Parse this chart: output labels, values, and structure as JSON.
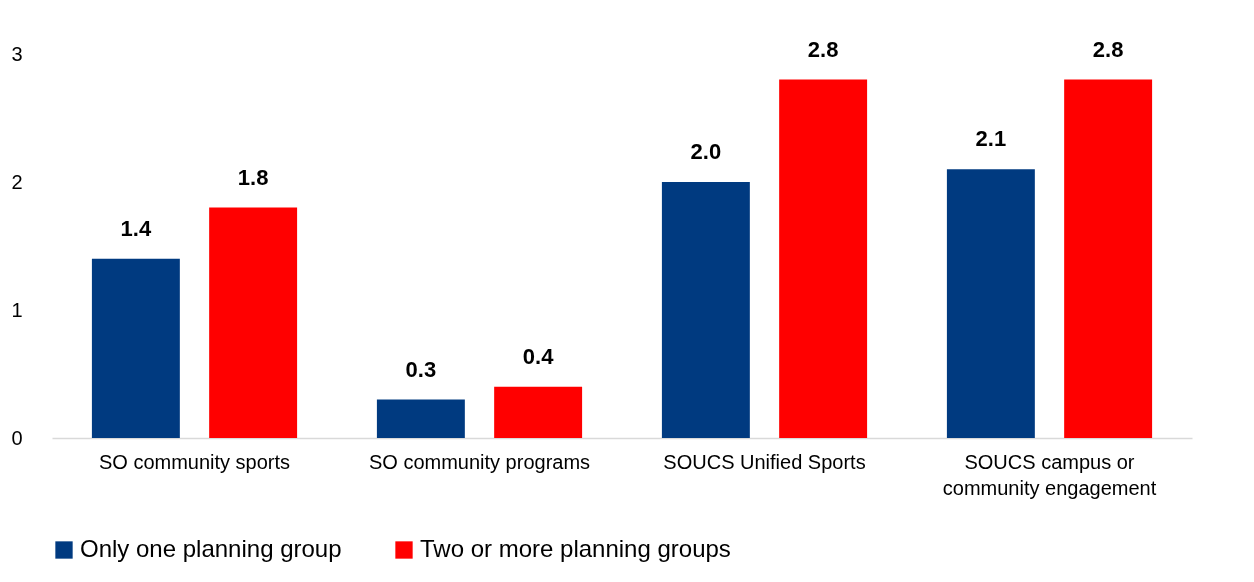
{
  "chart_data": {
    "type": "bar",
    "categories": [
      "SO community sports",
      "SO community programs",
      "SOUCS Unified Sports",
      "SOUCS campus or community engagement"
    ],
    "series": [
      {
        "name": "Only one planning group",
        "color": "#003a80",
        "values": [
          1.4,
          0.3,
          2.0,
          2.1
        ]
      },
      {
        "name": "Two or more planning groups",
        "color": "#ff0000",
        "values": [
          1.8,
          0.4,
          2.8,
          2.8
        ]
      }
    ],
    "value_labels": [
      [
        "1.4",
        "0.3",
        "2.0",
        "2.1"
      ],
      [
        "1.8",
        "0.4",
        "2.8",
        "2.8"
      ]
    ],
    "ylim": [
      0,
      3
    ],
    "yticks": [
      0,
      1,
      2,
      3
    ],
    "grid": false,
    "legend": "bottom"
  }
}
